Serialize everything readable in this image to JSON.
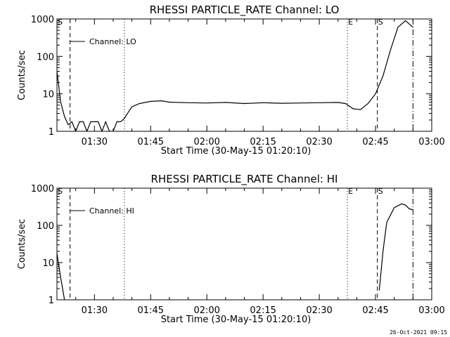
{
  "footer_timestamp": "26-Oct-2021 09:15",
  "chart_data": [
    {
      "type": "line",
      "title": "RHESSI PARTICLE_RATE Channel: LO",
      "xlabel": "Start Time (30-May-15 01:20:10)",
      "ylabel": "Counts/sec",
      "yscale": "log",
      "ylim": [
        1,
        1000
      ],
      "xlim": [
        "01:20",
        "03:00"
      ],
      "x_ticks": [
        "01:30",
        "01:45",
        "02:00",
        "02:15",
        "02:30",
        "02:45",
        "03:00"
      ],
      "y_ticks": [
        "1",
        "10",
        "100",
        "1000"
      ],
      "legend": {
        "label": "Channel: LO",
        "position": "top-left"
      },
      "event_markers": [
        {
          "label": "S",
          "time": "01:20",
          "style": "dashed"
        },
        {
          "label": "",
          "time": "01:23.5",
          "style": "dashed"
        },
        {
          "label": "",
          "time": "01:38",
          "style": "dotted"
        },
        {
          "label": "E",
          "time": "02:37.5",
          "style": "dotted"
        },
        {
          "label": "S",
          "time": "02:45.5",
          "style": "dashed"
        },
        {
          "label": "",
          "time": "02:55",
          "style": "dashdot"
        }
      ],
      "series": [
        {
          "x": [
            "01:20",
            "01:21",
            "01:22",
            "01:23",
            "01:24",
            "01:25",
            "01:26",
            "01:27",
            "01:28",
            "01:29",
            "01:30",
            "01:31",
            "01:32",
            "01:33",
            "01:34",
            "01:35",
            "01:36",
            "01:37",
            "01:38",
            "01:39",
            "01:40",
            "01:42",
            "01:45",
            "01:48",
            "01:50",
            "01:55",
            "02:00",
            "02:05",
            "02:10",
            "02:15",
            "02:20",
            "02:25",
            "02:30",
            "02:35",
            "02:37",
            "02:39",
            "02:41",
            "02:43",
            "02:45",
            "02:47",
            "02:49",
            "02:51",
            "02:53",
            "02:55"
          ],
          "y": [
            40,
            6,
            2.5,
            1.5,
            1.8,
            1,
            1.8,
            1.8,
            1,
            1.8,
            1.8,
            1.8,
            1,
            1.8,
            1,
            1,
            1.8,
            1.8,
            2.2,
            3.2,
            4.5,
            5.5,
            6.3,
            6.5,
            6,
            5.8,
            5.7,
            5.9,
            5.5,
            5.8,
            5.6,
            5.7,
            5.8,
            5.9,
            5.5,
            4.0,
            3.8,
            5.5,
            10,
            30,
            150,
            600,
            900,
            600
          ]
        }
      ]
    },
    {
      "type": "line",
      "title": "RHESSI PARTICLE_RATE Channel: HI",
      "xlabel": "Start Time (30-May-15 01:20:10)",
      "ylabel": "Counts/sec",
      "yscale": "log",
      "ylim": [
        1,
        1000
      ],
      "xlim": [
        "01:20",
        "03:00"
      ],
      "x_ticks": [
        "01:30",
        "01:45",
        "02:00",
        "02:15",
        "02:30",
        "02:45",
        "03:00"
      ],
      "y_ticks": [
        "1",
        "10",
        "100",
        "1000"
      ],
      "legend": {
        "label": "Channel: HI",
        "position": "top-left"
      },
      "event_markers": [
        {
          "label": "S",
          "time": "01:20",
          "style": "dashed"
        },
        {
          "label": "",
          "time": "01:23.5",
          "style": "dashed"
        },
        {
          "label": "",
          "time": "01:38",
          "style": "dotted"
        },
        {
          "label": "E",
          "time": "02:37.5",
          "style": "dotted"
        },
        {
          "label": "S",
          "time": "02:45.5",
          "style": "dashed"
        },
        {
          "label": "",
          "time": "02:55",
          "style": "dashdot"
        }
      ],
      "series": [
        {
          "segments": [
            {
              "x": [
                "01:20",
                "01:20.5",
                "01:21",
                "01:21.5",
                "01:22"
              ],
              "y": [
                18,
                8,
                4,
                2,
                1
              ]
            },
            {
              "x": [
                "02:46",
                "02:47",
                "02:48",
                "02:50",
                "02:52",
                "02:53",
                "02:54",
                "02:55"
              ],
              "y": [
                1.8,
                20,
                120,
                300,
                380,
                350,
                280,
                260
              ]
            }
          ]
        }
      ]
    }
  ]
}
